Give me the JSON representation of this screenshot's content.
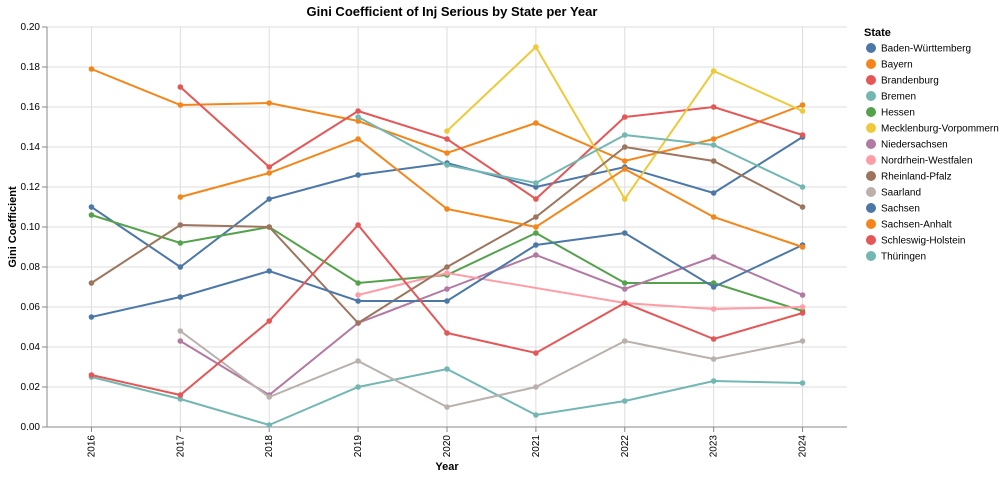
{
  "chart_data": {
    "type": "line",
    "title": "Gini Coefficient of Inj Serious by State per Year",
    "xlabel": "Year",
    "ylabel": "Gini Coefficient",
    "ylim": [
      0,
      0.2
    ],
    "yticks": [
      0.0,
      0.02,
      0.04,
      0.06,
      0.08,
      0.1,
      0.12,
      0.14,
      0.16,
      0.18,
      0.2
    ],
    "ytick_labels": [
      "0.00",
      "0.02",
      "0.04",
      "0.06",
      "0.08",
      "0.10",
      "0.12",
      "0.14",
      "0.16",
      "0.18",
      "0.20"
    ],
    "x": [
      "2016",
      "2017",
      "2018",
      "2019",
      "2020",
      "2021",
      "2022",
      "2023",
      "2024"
    ],
    "grid": true,
    "legend_title": "State",
    "legend_placement": "right",
    "series": [
      {
        "name": "Baden-Württemberg",
        "color": "#4c78a8",
        "values": [
          0.11,
          0.08,
          0.114,
          0.126,
          0.132,
          0.12,
          0.13,
          0.117,
          0.145
        ]
      },
      {
        "name": "Bayern",
        "color": "#f58518",
        "values": [
          0.179,
          0.161,
          0.162,
          0.153,
          0.137,
          0.152,
          0.133,
          0.144,
          0.161
        ]
      },
      {
        "name": "Brandenburg",
        "color": "#e45756",
        "values": [
          null,
          0.17,
          0.13,
          0.158,
          0.144,
          0.114,
          0.155,
          0.16,
          0.146
        ]
      },
      {
        "name": "Bremen",
        "color": "#72b7b2",
        "values": [
          0.025,
          0.014,
          0.001,
          0.02,
          0.029,
          0.006,
          0.013,
          0.023,
          0.022
        ]
      },
      {
        "name": "Hessen",
        "color": "#54a24b",
        "values": [
          0.106,
          0.092,
          0.1,
          0.072,
          0.076,
          0.097,
          0.072,
          0.072,
          0.058
        ]
      },
      {
        "name": "Mecklenburg-Vorpommern",
        "color": "#eeca3b",
        "values": [
          null,
          null,
          null,
          null,
          0.148,
          0.19,
          0.114,
          0.178,
          0.158
        ]
      },
      {
        "name": "Niedersachsen",
        "color": "#b279a2",
        "values": [
          null,
          0.043,
          0.016,
          0.052,
          0.069,
          0.086,
          0.069,
          0.085,
          0.066
        ]
      },
      {
        "name": "Nordrhein-Westfalen",
        "color": "#ff9da6",
        "values": [
          null,
          null,
          null,
          0.066,
          0.077,
          null,
          0.062,
          0.059,
          0.06
        ]
      },
      {
        "name": "Rheinland-Pfalz",
        "color": "#9d755d",
        "values": [
          0.072,
          0.101,
          0.1,
          0.052,
          0.08,
          0.105,
          0.14,
          0.133,
          0.11
        ]
      },
      {
        "name": "Saarland",
        "color": "#bab0ac",
        "values": [
          null,
          0.048,
          0.015,
          0.033,
          0.01,
          0.02,
          0.043,
          0.034,
          0.043
        ]
      },
      {
        "name": "Sachsen",
        "color": "#4c78a8",
        "values": [
          0.055,
          0.065,
          0.078,
          0.063,
          0.063,
          0.091,
          0.097,
          0.07,
          0.091
        ]
      },
      {
        "name": "Sachsen-Anhalt",
        "color": "#f58518",
        "values": [
          null,
          0.115,
          0.127,
          0.144,
          0.109,
          0.1,
          0.129,
          0.105,
          0.09
        ]
      },
      {
        "name": "Schleswig-Holstein",
        "color": "#e45756",
        "values": [
          0.026,
          0.016,
          0.053,
          0.101,
          0.047,
          0.037,
          0.062,
          0.044,
          0.057
        ]
      },
      {
        "name": "Thüringen",
        "color": "#72b7b2",
        "values": [
          null,
          null,
          null,
          0.155,
          0.131,
          0.122,
          0.146,
          0.141,
          0.12
        ]
      }
    ]
  }
}
